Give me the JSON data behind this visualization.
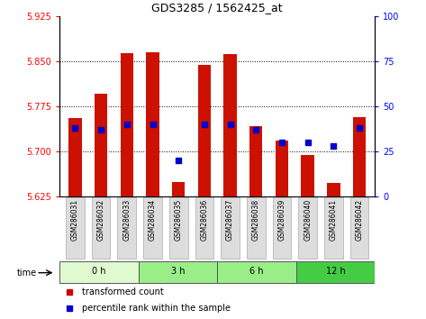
{
  "title": "GDS3285 / 1562425_at",
  "samples": [
    "GSM286031",
    "GSM286032",
    "GSM286033",
    "GSM286034",
    "GSM286035",
    "GSM286036",
    "GSM286037",
    "GSM286038",
    "GSM286039",
    "GSM286040",
    "GSM286041",
    "GSM286042"
  ],
  "transformed_count": [
    5.755,
    5.795,
    5.863,
    5.865,
    5.648,
    5.843,
    5.862,
    5.742,
    5.718,
    5.693,
    5.647,
    5.757
  ],
  "percentile_rank": [
    38,
    37,
    40,
    40,
    20,
    40,
    40,
    37,
    30,
    30,
    28,
    38
  ],
  "ylim_left": [
    5.625,
    5.925
  ],
  "ylim_right": [
    0,
    100
  ],
  "yticks_left": [
    5.625,
    5.7,
    5.775,
    5.85,
    5.925
  ],
  "yticks_right": [
    0,
    25,
    50,
    75,
    100
  ],
  "bar_color": "#cc1100",
  "dot_color": "#0000cc",
  "bar_bottom": 5.625,
  "groups": [
    {
      "label": "0 h",
      "start": 0,
      "end": 3,
      "color": "#e0fad0"
    },
    {
      "label": "3 h",
      "start": 3,
      "end": 6,
      "color": "#99ee88"
    },
    {
      "label": "6 h",
      "start": 6,
      "end": 9,
      "color": "#99ee88"
    },
    {
      "label": "12 h",
      "start": 9,
      "end": 12,
      "color": "#44cc44"
    }
  ],
  "grid_yticks": [
    5.7,
    5.775,
    5.85
  ],
  "background_color": "#ffffff",
  "label_bar_color": "#cc0000",
  "label_dot_color": "#0000cc",
  "sample_box_color": "#dddddd"
}
